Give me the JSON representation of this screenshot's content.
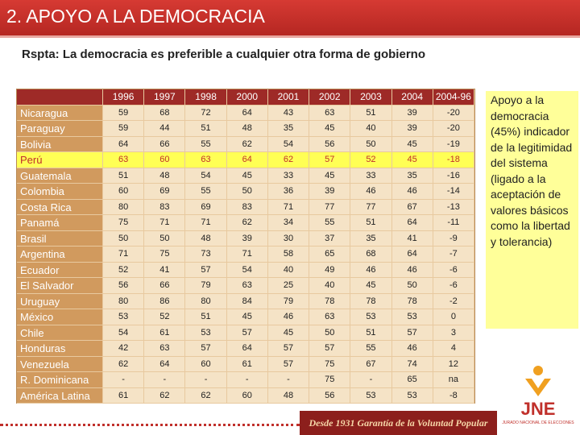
{
  "header": {
    "title": "2. APOYO A LA DEMOCRACIA"
  },
  "subtitle": "Rspta: La democracia es preferible a cualquier otra forma de gobierno",
  "table": {
    "columns": [
      "",
      "1996",
      "1997",
      "1998",
      "2000",
      "2001",
      "2002",
      "2003",
      "2004",
      "2004-96"
    ],
    "rows": [
      [
        "Nicaragua",
        "59",
        "68",
        "72",
        "64",
        "43",
        "63",
        "51",
        "39",
        "-20"
      ],
      [
        "Paraguay",
        "59",
        "44",
        "51",
        "48",
        "35",
        "45",
        "40",
        "39",
        "-20"
      ],
      [
        "Bolivia",
        "64",
        "66",
        "55",
        "62",
        "54",
        "56",
        "50",
        "45",
        "-19"
      ],
      [
        "Perú",
        "63",
        "60",
        "63",
        "64",
        "62",
        "57",
        "52",
        "45",
        "-18"
      ],
      [
        "Guatemala",
        "51",
        "48",
        "54",
        "45",
        "33",
        "45",
        "33",
        "35",
        "-16"
      ],
      [
        "Colombia",
        "60",
        "69",
        "55",
        "50",
        "36",
        "39",
        "46",
        "46",
        "-14"
      ],
      [
        "Costa Rica",
        "80",
        "83",
        "69",
        "83",
        "71",
        "77",
        "77",
        "67",
        "-13"
      ],
      [
        "Panamá",
        "75",
        "71",
        "71",
        "62",
        "34",
        "55",
        "51",
        "64",
        "-11"
      ],
      [
        "Brasil",
        "50",
        "50",
        "48",
        "39",
        "30",
        "37",
        "35",
        "41",
        "-9"
      ],
      [
        "Argentina",
        "71",
        "75",
        "73",
        "71",
        "58",
        "65",
        "68",
        "64",
        "-7"
      ],
      [
        "Ecuador",
        "52",
        "41",
        "57",
        "54",
        "40",
        "49",
        "46",
        "46",
        "-6"
      ],
      [
        "El Salvador",
        "56",
        "66",
        "79",
        "63",
        "25",
        "40",
        "45",
        "50",
        "-6"
      ],
      [
        "Uruguay",
        "80",
        "86",
        "80",
        "84",
        "79",
        "78",
        "78",
        "78",
        "-2"
      ],
      [
        "México",
        "53",
        "52",
        "51",
        "45",
        "46",
        "63",
        "53",
        "53",
        "0"
      ],
      [
        "Chile",
        "54",
        "61",
        "53",
        "57",
        "45",
        "50",
        "51",
        "57",
        "3"
      ],
      [
        "Honduras",
        "42",
        "63",
        "57",
        "64",
        "57",
        "57",
        "55",
        "46",
        "4"
      ],
      [
        "Venezuela",
        "62",
        "64",
        "60",
        "61",
        "57",
        "75",
        "67",
        "74",
        "12"
      ],
      [
        "R. Dominicana",
        "-",
        "-",
        "-",
        "-",
        "-",
        "75",
        "-",
        "65",
        "na"
      ],
      [
        "América Latina",
        "61",
        "62",
        "62",
        "60",
        "48",
        "56",
        "53",
        "53",
        "-8"
      ]
    ],
    "highlight_row": 3
  },
  "note": "Apoyo a la democracia (45%) indicador de la legitimidad del sistema (ligado a la aceptación de valores básicos como la libertad y tolerancia)",
  "footer": {
    "slogan": "Desde 1931 Garantía de la Voluntad Popular",
    "logo": "JNE",
    "logo_caption": "JURADO NACIONAL DE ELECCIONES"
  }
}
